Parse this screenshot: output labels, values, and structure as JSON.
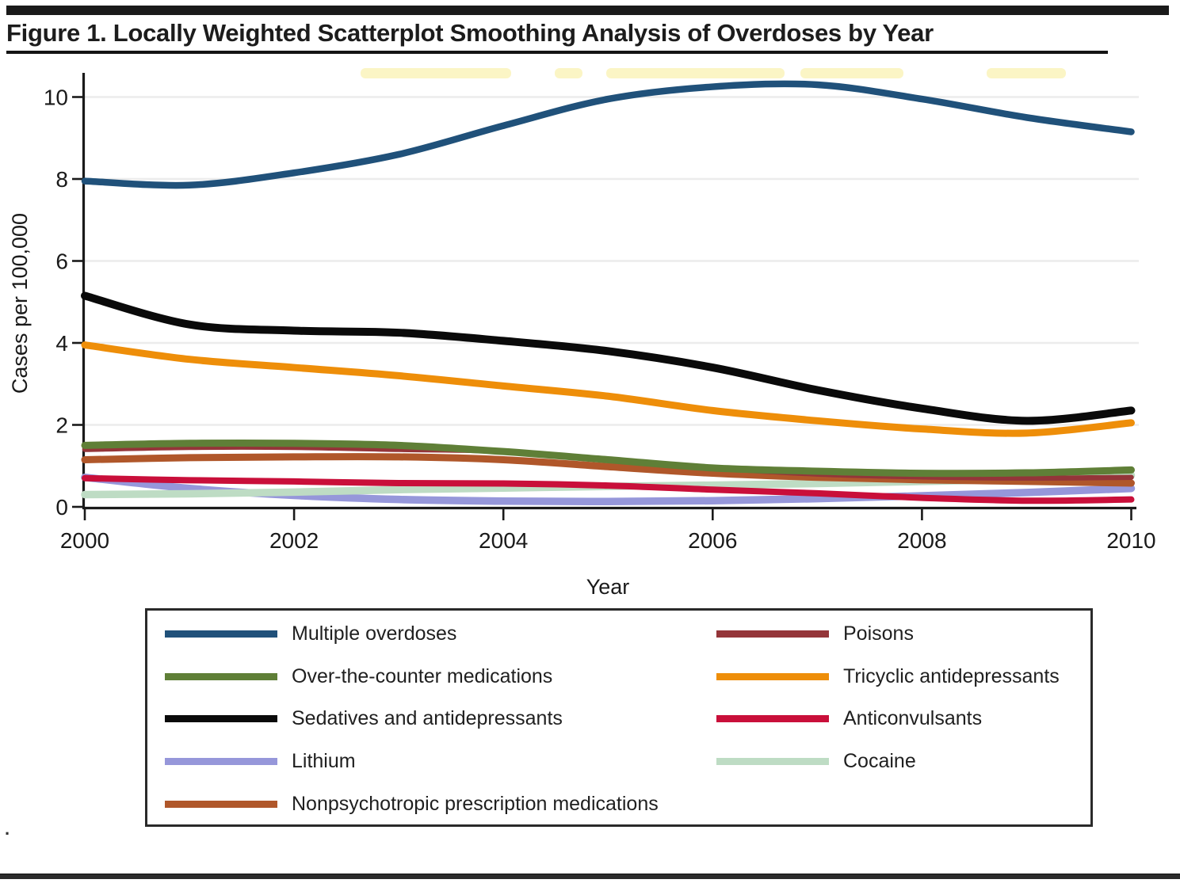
{
  "title": "Figure 1. Locally Weighted Scatterplot Smoothing Analysis of Overdoses by Year",
  "footnote": ".",
  "chart_data": {
    "type": "line",
    "title": "Figure 1. Locally Weighted Scatterplot Smoothing Analysis of Overdoses by Year",
    "xlabel": "Year",
    "ylabel": "Cases per 100,000",
    "x": [
      2000,
      2001,
      2002,
      2003,
      2004,
      2005,
      2006,
      2007,
      2008,
      2009,
      2010
    ],
    "xticks": [
      2000,
      2002,
      2004,
      2006,
      2008,
      2010
    ],
    "yticks": [
      0,
      2,
      4,
      6,
      8,
      10
    ],
    "xlim": [
      2000,
      2010
    ],
    "ylim": [
      0,
      10.6
    ],
    "grid": true,
    "smoothing": "lowess",
    "axis_color": "#1a1a1a",
    "grid_color": "#ececec",
    "series": [
      {
        "name": "Multiple overdoses",
        "color": "#20517a",
        "values": [
          7.95,
          7.85,
          8.15,
          8.6,
          9.3,
          9.95,
          10.25,
          10.3,
          9.95,
          9.5,
          9.15
        ]
      },
      {
        "name": "Over-the-counter medications",
        "color": "#5f7f37",
        "values": [
          1.5,
          1.55,
          1.55,
          1.5,
          1.35,
          1.15,
          0.95,
          0.87,
          0.82,
          0.83,
          0.9
        ]
      },
      {
        "name": "Sedatives and antidepressants",
        "color": "#0a0a0a",
        "values": [
          5.15,
          4.45,
          4.3,
          4.25,
          4.05,
          3.8,
          3.4,
          2.85,
          2.4,
          2.1,
          2.35
        ]
      },
      {
        "name": "Lithium",
        "color": "#9697da",
        "values": [
          0.72,
          0.45,
          0.28,
          0.18,
          0.14,
          0.13,
          0.15,
          0.2,
          0.27,
          0.35,
          0.45
        ]
      },
      {
        "name": "Nonpsychotropic prescription medications",
        "color": "#b0572a",
        "values": [
          1.15,
          1.2,
          1.22,
          1.22,
          1.15,
          0.98,
          0.82,
          0.72,
          0.66,
          0.62,
          0.58
        ]
      },
      {
        "name": "Poisons",
        "color": "#943539",
        "values": [
          1.4,
          1.45,
          1.45,
          1.4,
          1.35,
          1.15,
          0.95,
          0.8,
          0.73,
          0.7,
          0.72
        ]
      },
      {
        "name": "Tricyclic antidepressants",
        "color": "#ee8e09",
        "values": [
          3.95,
          3.6,
          3.4,
          3.2,
          2.95,
          2.7,
          2.35,
          2.1,
          1.9,
          1.8,
          2.05
        ]
      },
      {
        "name": "Anticonvulsants",
        "color": "#c90f3a",
        "values": [
          0.7,
          0.65,
          0.62,
          0.58,
          0.57,
          0.52,
          0.42,
          0.33,
          0.22,
          0.15,
          0.18
        ]
      },
      {
        "name": "Cocaine",
        "color": "#bedcc4",
        "values": [
          0.3,
          0.32,
          0.36,
          0.42,
          0.46,
          0.5,
          0.53,
          0.57,
          0.62,
          0.68,
          0.77
        ]
      }
    ],
    "draw_order": [
      "Lithium",
      "Cocaine",
      "Anticonvulsants",
      "Nonpsychotropic prescription medications",
      "Poisons",
      "Over-the-counter medications",
      "Tricyclic antidepressants",
      "Sedatives and antidepressants",
      "Multiple overdoses"
    ],
    "legend_position": "bottom-box",
    "legend_columns": [
      [
        "Multiple overdoses",
        "Over-the-counter medications",
        "Sedatives and antidepressants",
        "Lithium",
        "Nonpsychotropic prescription medications"
      ],
      [
        "Poisons",
        "Tricyclic antidepressants",
        "Anticonvulsants",
        "Cocaine"
      ]
    ]
  }
}
